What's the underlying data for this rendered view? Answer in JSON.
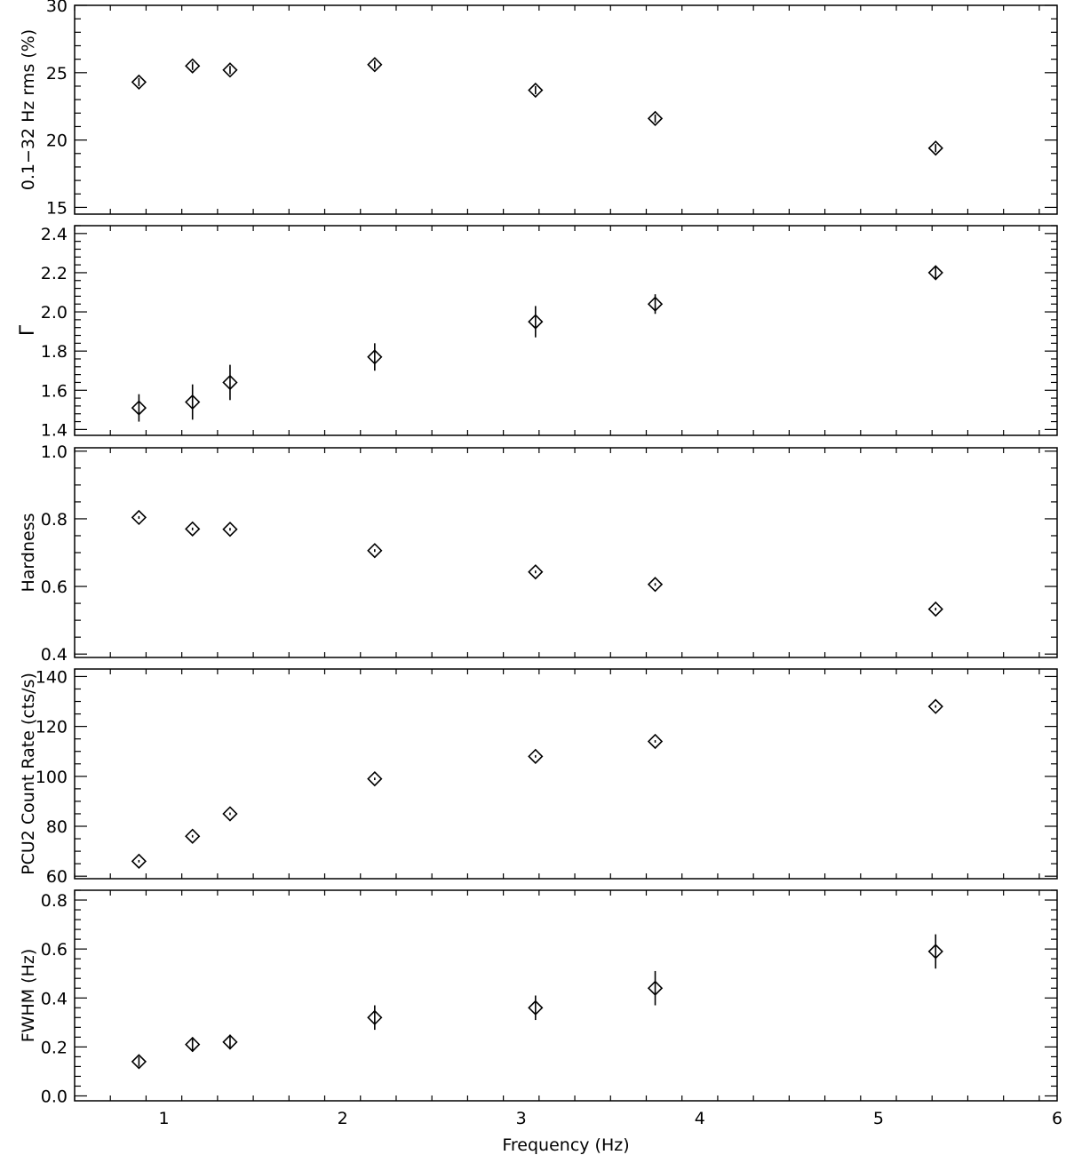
{
  "chart_data": {
    "type": "scatter",
    "shared_x": {
      "label": "Frequency (Hz)",
      "range": [
        0.5,
        6
      ],
      "ticks": [
        1,
        2,
        3,
        4,
        5,
        6
      ],
      "tick_labels": [
        "1",
        "2",
        "3",
        "4",
        "5",
        "6"
      ],
      "minor_step": 0.2,
      "values": [
        0.86,
        1.16,
        1.37,
        2.18,
        3.08,
        3.75,
        5.32
      ]
    },
    "panels": [
      {
        "id": "rms",
        "ylabel": "0.1−32 Hz rms (%)",
        "ylim": [
          14.5,
          30
        ],
        "yticks": [
          15,
          20,
          25,
          30
        ],
        "ytick_labels": [
          "15",
          "20",
          "25",
          "30"
        ],
        "yminor_step": 1,
        "y": [
          24.3,
          25.5,
          25.2,
          25.6,
          23.7,
          21.6,
          19.4
        ],
        "yerr": [
          0.3,
          0.3,
          0.3,
          0.3,
          0.3,
          0.3,
          0.3
        ]
      },
      {
        "id": "gamma",
        "ylabel": "Γ",
        "ylim": [
          1.37,
          2.44
        ],
        "yticks": [
          1.4,
          1.6,
          1.8,
          2.0,
          2.2,
          2.4
        ],
        "ytick_labels": [
          "1.4",
          "1.6",
          "1.8",
          "2.0",
          "2.2",
          "2.4"
        ],
        "yminor_step": 0.04,
        "y": [
          1.51,
          1.54,
          1.64,
          1.77,
          1.95,
          2.04,
          2.2
        ],
        "yerr": [
          0.07,
          0.09,
          0.09,
          0.07,
          0.08,
          0.05,
          0.03
        ]
      },
      {
        "id": "hardness",
        "ylabel": "Hardness",
        "ylim": [
          0.39,
          1.01
        ],
        "yticks": [
          0.4,
          0.6,
          0.8,
          1.0
        ],
        "ytick_labels": [
          "0.4",
          "0.6",
          "0.8",
          "1.0"
        ],
        "yminor_step": 0.05,
        "y": [
          0.804,
          0.77,
          0.769,
          0.706,
          0.643,
          0.606,
          0.533
        ],
        "yerr": [
          0.004,
          0.004,
          0.004,
          0.004,
          0.004,
          0.004,
          0.004
        ]
      },
      {
        "id": "countrate",
        "ylabel": "PCU2 Count Rate (cts/s)",
        "ylim": [
          59,
          143
        ],
        "yticks": [
          60,
          80,
          100,
          120,
          140
        ],
        "ytick_labels": [
          "60",
          "80",
          "100",
          "120",
          "140"
        ],
        "yminor_step": 5,
        "y": [
          66,
          76,
          85,
          99,
          108,
          114,
          128
        ],
        "yerr": [
          0.5,
          0.5,
          0.5,
          0.5,
          0.5,
          0.5,
          0.5
        ]
      },
      {
        "id": "fwhm",
        "ylabel": "FWHM (Hz)",
        "ylim": [
          -0.02,
          0.84
        ],
        "yticks": [
          0.0,
          0.2,
          0.4,
          0.6,
          0.8
        ],
        "ytick_labels": [
          "0.0",
          "0.2",
          "0.4",
          "0.6",
          "0.8"
        ],
        "yminor_step": 0.04,
        "y": [
          0.14,
          0.21,
          0.22,
          0.32,
          0.36,
          0.44,
          0.59
        ],
        "yerr": [
          0.02,
          0.03,
          0.03,
          0.05,
          0.05,
          0.07,
          0.07
        ]
      }
    ]
  }
}
